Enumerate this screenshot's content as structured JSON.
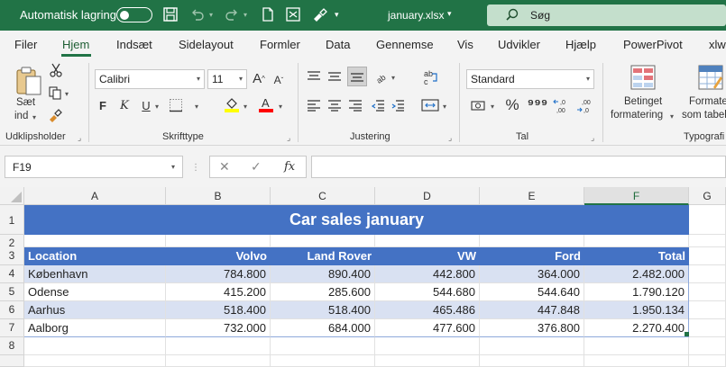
{
  "titlebar": {
    "autosave_label": "Automatisk lagring",
    "filename": "january.xlsx",
    "search_placeholder": "Søg"
  },
  "tabs": [
    "Filer",
    "Hjem",
    "Indsæt",
    "Sidelayout",
    "Formler",
    "Data",
    "Gennemse",
    "Vis",
    "Udvikler",
    "Hjælp",
    "PowerPivot",
    "xlw"
  ],
  "active_tab": "Hjem",
  "ribbon": {
    "clipboard": {
      "paste_label_1": "Sæt",
      "paste_label_2": "ind",
      "group": "Udklipsholder"
    },
    "font": {
      "name": "Calibri",
      "size": "11",
      "bold": "F",
      "italic": "K",
      "underline": "U",
      "group": "Skrifttype",
      "fill_color": "#ffff00",
      "font_color": "#ff0000"
    },
    "alignment": {
      "group": "Justering"
    },
    "number": {
      "format": "Standard",
      "group": "Tal"
    },
    "styles": {
      "cond_label_1": "Betinget",
      "cond_label_2": "formatering",
      "table_label_1": "Formater",
      "table_label_2": "som tabel",
      "group": "Typografi"
    }
  },
  "formula_bar": {
    "name_box": "F19",
    "fx": "fx",
    "formula": ""
  },
  "columns": [
    "A",
    "B",
    "C",
    "D",
    "E",
    "F",
    "G"
  ],
  "rows": [
    "1",
    "2",
    "3",
    "4",
    "5",
    "6",
    "7",
    "8"
  ],
  "sheet": {
    "title": "Car sales january",
    "headers": [
      "Location",
      "Volvo",
      "Land Rover",
      "VW",
      "Ford",
      "Total"
    ],
    "data": [
      [
        "København",
        "784.800",
        "890.400",
        "442.800",
        "364.000",
        "2.482.000"
      ],
      [
        "Odense",
        "415.200",
        "285.600",
        "544.680",
        "544.640",
        "1.790.120"
      ],
      [
        "Aarhus",
        "518.400",
        "518.400",
        "465.486",
        "447.848",
        "1.950.134"
      ],
      [
        "Aalborg",
        "732.000",
        "684.000",
        "477.600",
        "376.800",
        "2.270.400"
      ]
    ],
    "colors": {
      "band_dark": "#4472c4",
      "band_light": "#d9e1f2",
      "accent": "#217346"
    }
  }
}
